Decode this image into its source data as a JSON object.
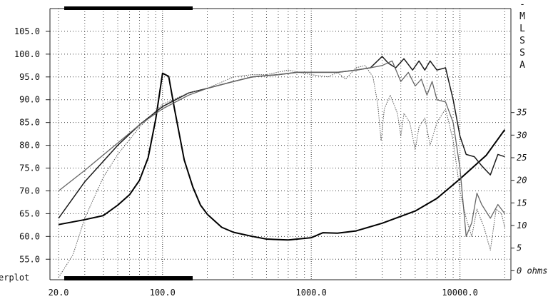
{
  "chart_data": {
    "type": "line",
    "title": "",
    "xlabel": "",
    "ylabel": "",
    "x_scale": "log",
    "xlim": [
      17.5,
      22000
    ],
    "ylim": [
      50.5,
      110
    ],
    "y2lim": [
      -2,
      58
    ],
    "grid": true,
    "x_tick_labels": [
      "20.0",
      "100.0",
      "1000.0",
      "10000.0"
    ],
    "x_tick_values": [
      20,
      100,
      1000,
      10000
    ],
    "y_tick_labels": [
      "55.0",
      "60.0",
      "65.0",
      "70.0",
      "75.0",
      "80.0",
      "85.0",
      "90.0",
      "95.0",
      "100.0",
      "105.0"
    ],
    "y_tick_values": [
      55,
      60,
      65,
      70,
      75,
      80,
      85,
      90,
      95,
      100,
      105
    ],
    "y2_tick_labels": [
      "0 ohms",
      "5",
      "10",
      "15",
      "20",
      "25",
      "30",
      "35"
    ],
    "y2_tick_values": [
      0,
      5,
      10,
      15,
      20,
      25,
      30,
      35
    ],
    "vertical_label": [
      "-",
      "M",
      "L",
      "S",
      "S",
      "A"
    ],
    "left_edge_label": "erplot",
    "series": [
      {
        "style": "impedance",
        "axis": "right",
        "points": [
          [
            20,
            10.2
          ],
          [
            30,
            11.3
          ],
          [
            40,
            12.2
          ],
          [
            50,
            14.5
          ],
          [
            60,
            16.8
          ],
          [
            70,
            20.0
          ],
          [
            80,
            25.0
          ],
          [
            90,
            33.5
          ],
          [
            100,
            43.7
          ],
          [
            110,
            43.0
          ],
          [
            120,
            36.0
          ],
          [
            140,
            24.5
          ],
          [
            160,
            18.5
          ],
          [
            180,
            14.5
          ],
          [
            200,
            12.5
          ],
          [
            250,
            9.6
          ],
          [
            300,
            8.5
          ],
          [
            400,
            7.6
          ],
          [
            500,
            7.0
          ],
          [
            700,
            6.8
          ],
          [
            1000,
            7.3
          ],
          [
            1200,
            8.4
          ],
          [
            1500,
            8.3
          ],
          [
            2000,
            8.8
          ],
          [
            3000,
            10.5
          ],
          [
            5000,
            13.2
          ],
          [
            7000,
            16.0
          ],
          [
            10000,
            20.3
          ],
          [
            15000,
            25.5
          ],
          [
            20000,
            31.2
          ]
        ]
      },
      {
        "style": "response-1",
        "axis": "left",
        "points": [
          [
            20,
            64
          ],
          [
            30,
            72
          ],
          [
            50,
            80
          ],
          [
            70,
            84.5
          ],
          [
            100,
            88.5
          ],
          [
            150,
            91.5
          ],
          [
            200,
            92.5
          ],
          [
            300,
            94
          ],
          [
            400,
            95
          ],
          [
            600,
            95.5
          ],
          [
            800,
            96
          ],
          [
            1000,
            96
          ],
          [
            1500,
            96
          ],
          [
            2000,
            96.5
          ],
          [
            2500,
            97
          ],
          [
            3000,
            99.5
          ],
          [
            3300,
            98
          ],
          [
            3700,
            97
          ],
          [
            4200,
            99
          ],
          [
            4800,
            96.5
          ],
          [
            5300,
            98.5
          ],
          [
            5800,
            96.5
          ],
          [
            6300,
            98.5
          ],
          [
            7000,
            96.5
          ],
          [
            8000,
            97
          ],
          [
            9000,
            90
          ],
          [
            10000,
            82
          ],
          [
            11000,
            78
          ],
          [
            12500,
            77.5
          ],
          [
            14000,
            75.5
          ],
          [
            16000,
            73.5
          ],
          [
            18000,
            78
          ],
          [
            20000,
            77.5
          ]
        ]
      },
      {
        "style": "response-2",
        "axis": "left",
        "points": [
          [
            20,
            70
          ],
          [
            30,
            74.5
          ],
          [
            50,
            80.5
          ],
          [
            70,
            84.5
          ],
          [
            100,
            88
          ],
          [
            150,
            91
          ],
          [
            200,
            92.5
          ],
          [
            300,
            94
          ],
          [
            400,
            95
          ],
          [
            600,
            95.5
          ],
          [
            800,
            96
          ],
          [
            1000,
            96
          ],
          [
            1500,
            96
          ],
          [
            2000,
            96.5
          ],
          [
            2500,
            97
          ],
          [
            3000,
            97.5
          ],
          [
            3500,
            98.5
          ],
          [
            4000,
            94
          ],
          [
            4500,
            96
          ],
          [
            5000,
            93
          ],
          [
            5500,
            94.5
          ],
          [
            6000,
            91
          ],
          [
            6500,
            94
          ],
          [
            7000,
            90
          ],
          [
            8000,
            89.5
          ],
          [
            9000,
            85
          ],
          [
            10000,
            75
          ],
          [
            11000,
            60
          ],
          [
            12000,
            63
          ],
          [
            13000,
            69.5
          ],
          [
            14000,
            67
          ],
          [
            16000,
            64
          ],
          [
            18000,
            67
          ],
          [
            20000,
            65
          ]
        ]
      },
      {
        "style": "response-3",
        "axis": "left",
        "points": [
          [
            20,
            51
          ],
          [
            25,
            56
          ],
          [
            30,
            64
          ],
          [
            40,
            73
          ],
          [
            50,
            78
          ],
          [
            70,
            84
          ],
          [
            100,
            89
          ],
          [
            150,
            91.5
          ],
          [
            200,
            92.5
          ],
          [
            300,
            95
          ],
          [
            400,
            95.5
          ],
          [
            500,
            95.5
          ],
          [
            700,
            96.5
          ],
          [
            1000,
            95.5
          ],
          [
            1300,
            95
          ],
          [
            1500,
            96
          ],
          [
            1700,
            94.5
          ],
          [
            2000,
            97
          ],
          [
            2300,
            97.5
          ],
          [
            2600,
            95
          ],
          [
            2800,
            89
          ],
          [
            2950,
            81
          ],
          [
            3100,
            88
          ],
          [
            3400,
            91
          ],
          [
            3800,
            87
          ],
          [
            4000,
            82
          ],
          [
            4200,
            87
          ],
          [
            4600,
            85
          ],
          [
            5000,
            79
          ],
          [
            5300,
            84
          ],
          [
            5800,
            86
          ],
          [
            6300,
            80
          ],
          [
            7000,
            85
          ],
          [
            8000,
            88
          ],
          [
            9000,
            81
          ],
          [
            10000,
            70
          ],
          [
            11000,
            64
          ],
          [
            12000,
            60
          ],
          [
            13000,
            66
          ],
          [
            14500,
            62
          ],
          [
            16000,
            57
          ],
          [
            17500,
            66
          ],
          [
            19000,
            65
          ],
          [
            20000,
            62
          ]
        ]
      }
    ]
  }
}
